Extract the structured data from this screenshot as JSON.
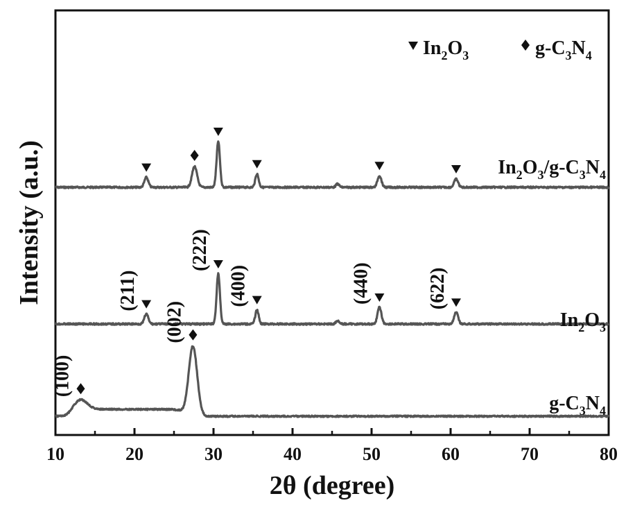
{
  "chart_data": {
    "type": "line",
    "xlabel": "2θ (degree)",
    "ylabel": "Intensity (a.u.)",
    "xlim": [
      10,
      80
    ],
    "xticks": [
      10,
      20,
      30,
      40,
      50,
      60,
      70,
      80
    ],
    "legend": {
      "placement": "top-right",
      "entries": [
        {
          "marker": "triangle-down",
          "label_main": "In",
          "label_sub1": "2",
          "label_mid": "O",
          "label_sub2": "3"
        },
        {
          "marker": "diamond",
          "label_main": "g-C",
          "label_sub1": "3",
          "label_mid": "N",
          "label_sub2": "4"
        }
      ]
    },
    "series": [
      {
        "name": "In2O3/g-C3N4",
        "label_parts": [
          "In",
          "2",
          "O",
          "3",
          "/g-C",
          "3",
          "N",
          "4"
        ],
        "baseline": 0.0,
        "peaks": [
          {
            "x": 21.5,
            "h": 0.12,
            "w": 0.35,
            "marker": "triangle"
          },
          {
            "x": 27.6,
            "h": 0.25,
            "w": 0.45,
            "marker": "diamond"
          },
          {
            "x": 30.6,
            "h": 0.55,
            "w": 0.3,
            "marker": "triangle"
          },
          {
            "x": 35.5,
            "h": 0.16,
            "w": 0.3,
            "marker": "triangle"
          },
          {
            "x": 45.7,
            "h": 0.04,
            "w": 0.3,
            "marker": null
          },
          {
            "x": 51.0,
            "h": 0.14,
            "w": 0.35,
            "marker": "triangle"
          },
          {
            "x": 60.7,
            "h": 0.1,
            "w": 0.35,
            "marker": "triangle"
          }
        ]
      },
      {
        "name": "In2O3",
        "label_parts": [
          "In",
          "2",
          "O",
          "3"
        ],
        "baseline": 0.0,
        "peaks": [
          {
            "x": 21.5,
            "h": 0.12,
            "w": 0.35,
            "marker": "triangle"
          },
          {
            "x": 30.6,
            "h": 0.6,
            "w": 0.3,
            "marker": "triangle"
          },
          {
            "x": 35.5,
            "h": 0.17,
            "w": 0.3,
            "marker": "triangle"
          },
          {
            "x": 45.7,
            "h": 0.04,
            "w": 0.3,
            "marker": null
          },
          {
            "x": 51.0,
            "h": 0.2,
            "w": 0.35,
            "marker": "triangle"
          },
          {
            "x": 60.7,
            "h": 0.14,
            "w": 0.35,
            "marker": "triangle"
          }
        ]
      },
      {
        "name": "g-C3N4",
        "label_parts": [
          "g-C",
          "3",
          "N",
          "4"
        ],
        "baseline": 0.0,
        "peaks": [
          {
            "x": 13.2,
            "h": 0.14,
            "w": 1.2,
            "marker": "diamond"
          },
          {
            "x": 27.4,
            "h": 1.0,
            "w": 0.75,
            "marker": "diamond"
          }
        ],
        "plateau": {
          "from": 12.0,
          "to": 26.5,
          "h": 0.1
        }
      }
    ],
    "hkl_labels": [
      {
        "text": "(211)",
        "x": 21.5,
        "series": "In2O3"
      },
      {
        "text": "(222)",
        "x": 30.6,
        "series": "In2O3"
      },
      {
        "text": "(400)",
        "x": 35.5,
        "series": "In2O3"
      },
      {
        "text": "(440)",
        "x": 51.0,
        "series": "In2O3"
      },
      {
        "text": "(622)",
        "x": 60.7,
        "series": "In2O3"
      },
      {
        "text": "(100)",
        "x": 13.2,
        "series": "g-C3N4"
      },
      {
        "text": "(002)",
        "x": 27.4,
        "series": "g-C3N4"
      }
    ],
    "grid": false
  }
}
